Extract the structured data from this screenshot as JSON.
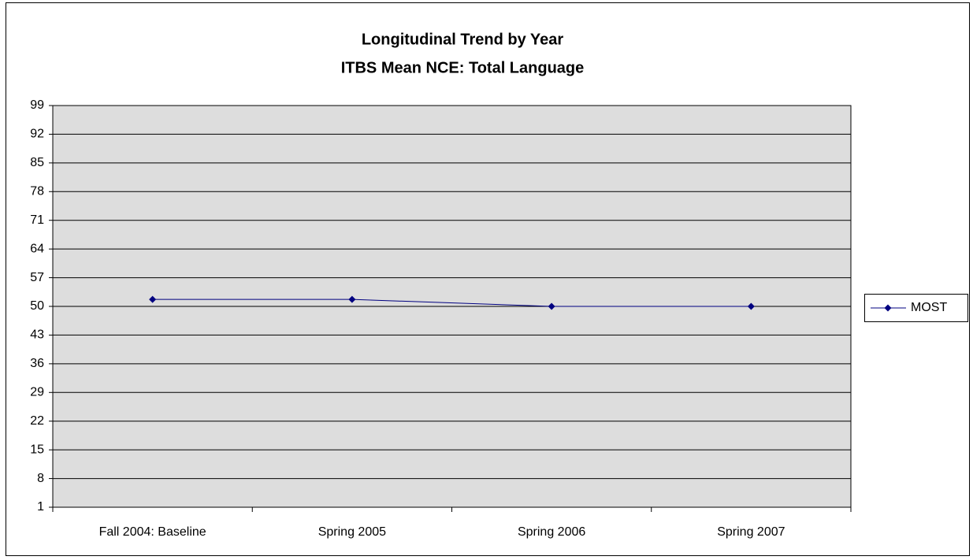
{
  "chart_data": {
    "type": "line",
    "title": "Longitudinal Trend by Year",
    "subtitle": "ITBS Mean NCE: Total Language",
    "categories": [
      "Fall 2004: Baseline",
      "Spring 2005",
      "Spring 2006",
      "Spring 2007"
    ],
    "series": [
      {
        "name": "MOST",
        "color": "#000080",
        "values": [
          51.7,
          51.7,
          50,
          50
        ]
      }
    ],
    "ylim": [
      1,
      99
    ],
    "yticks": [
      1,
      8,
      15,
      22,
      29,
      36,
      43,
      50,
      57,
      64,
      71,
      78,
      85,
      92,
      99
    ],
    "grid": true,
    "legend": "right"
  }
}
